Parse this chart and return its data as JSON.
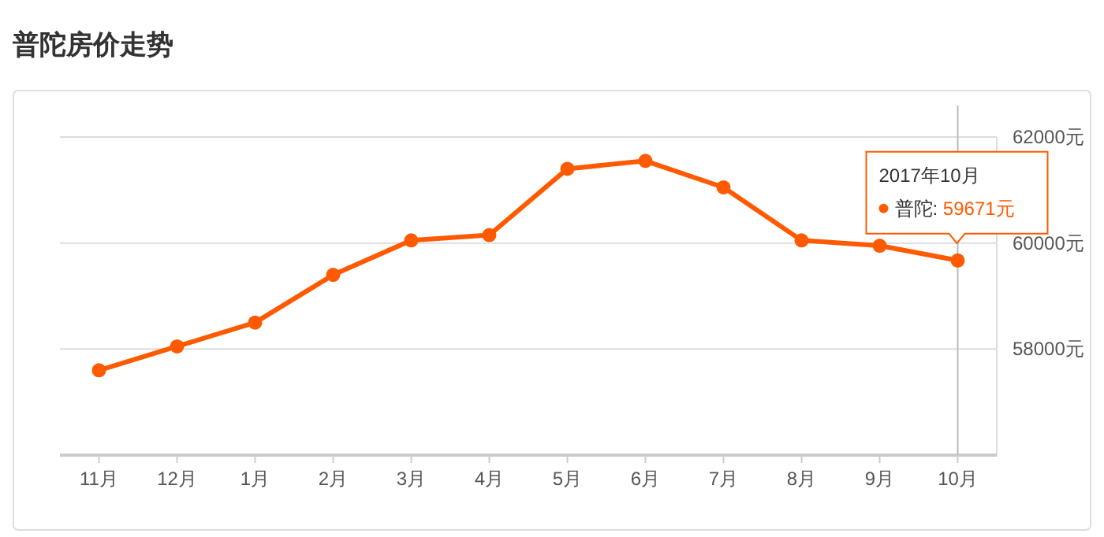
{
  "chart_data": {
    "type": "line",
    "title": "普陀房价走势",
    "categories": [
      "11月",
      "12月",
      "1月",
      "2月",
      "3月",
      "4月",
      "5月",
      "6月",
      "7月",
      "8月",
      "9月",
      "10月"
    ],
    "series": [
      {
        "color": "#ff5a00",
        "values": [
          57600,
          58050,
          58500,
          59400,
          60050,
          60150,
          61400,
          61550,
          61050,
          60050,
          59950,
          59671
        ]
      }
    ],
    "annotations": [
      "2017年10月",
      "普陀:  59671元"
    ],
    "ref_lines": [
      {
        "axis": "x",
        "value": "10月",
        "color": "#bbbbbb"
      }
    ],
    "ylim": [
      56000,
      62000
    ],
    "yticks": [
      {
        "value": 58000,
        "label": "58000元"
      },
      {
        "value": 60000,
        "label": "60000元"
      },
      {
        "value": 62000,
        "label": "62000元"
      }
    ],
    "grid": "y",
    "marker": "circle",
    "line_style": "solid"
  }
}
